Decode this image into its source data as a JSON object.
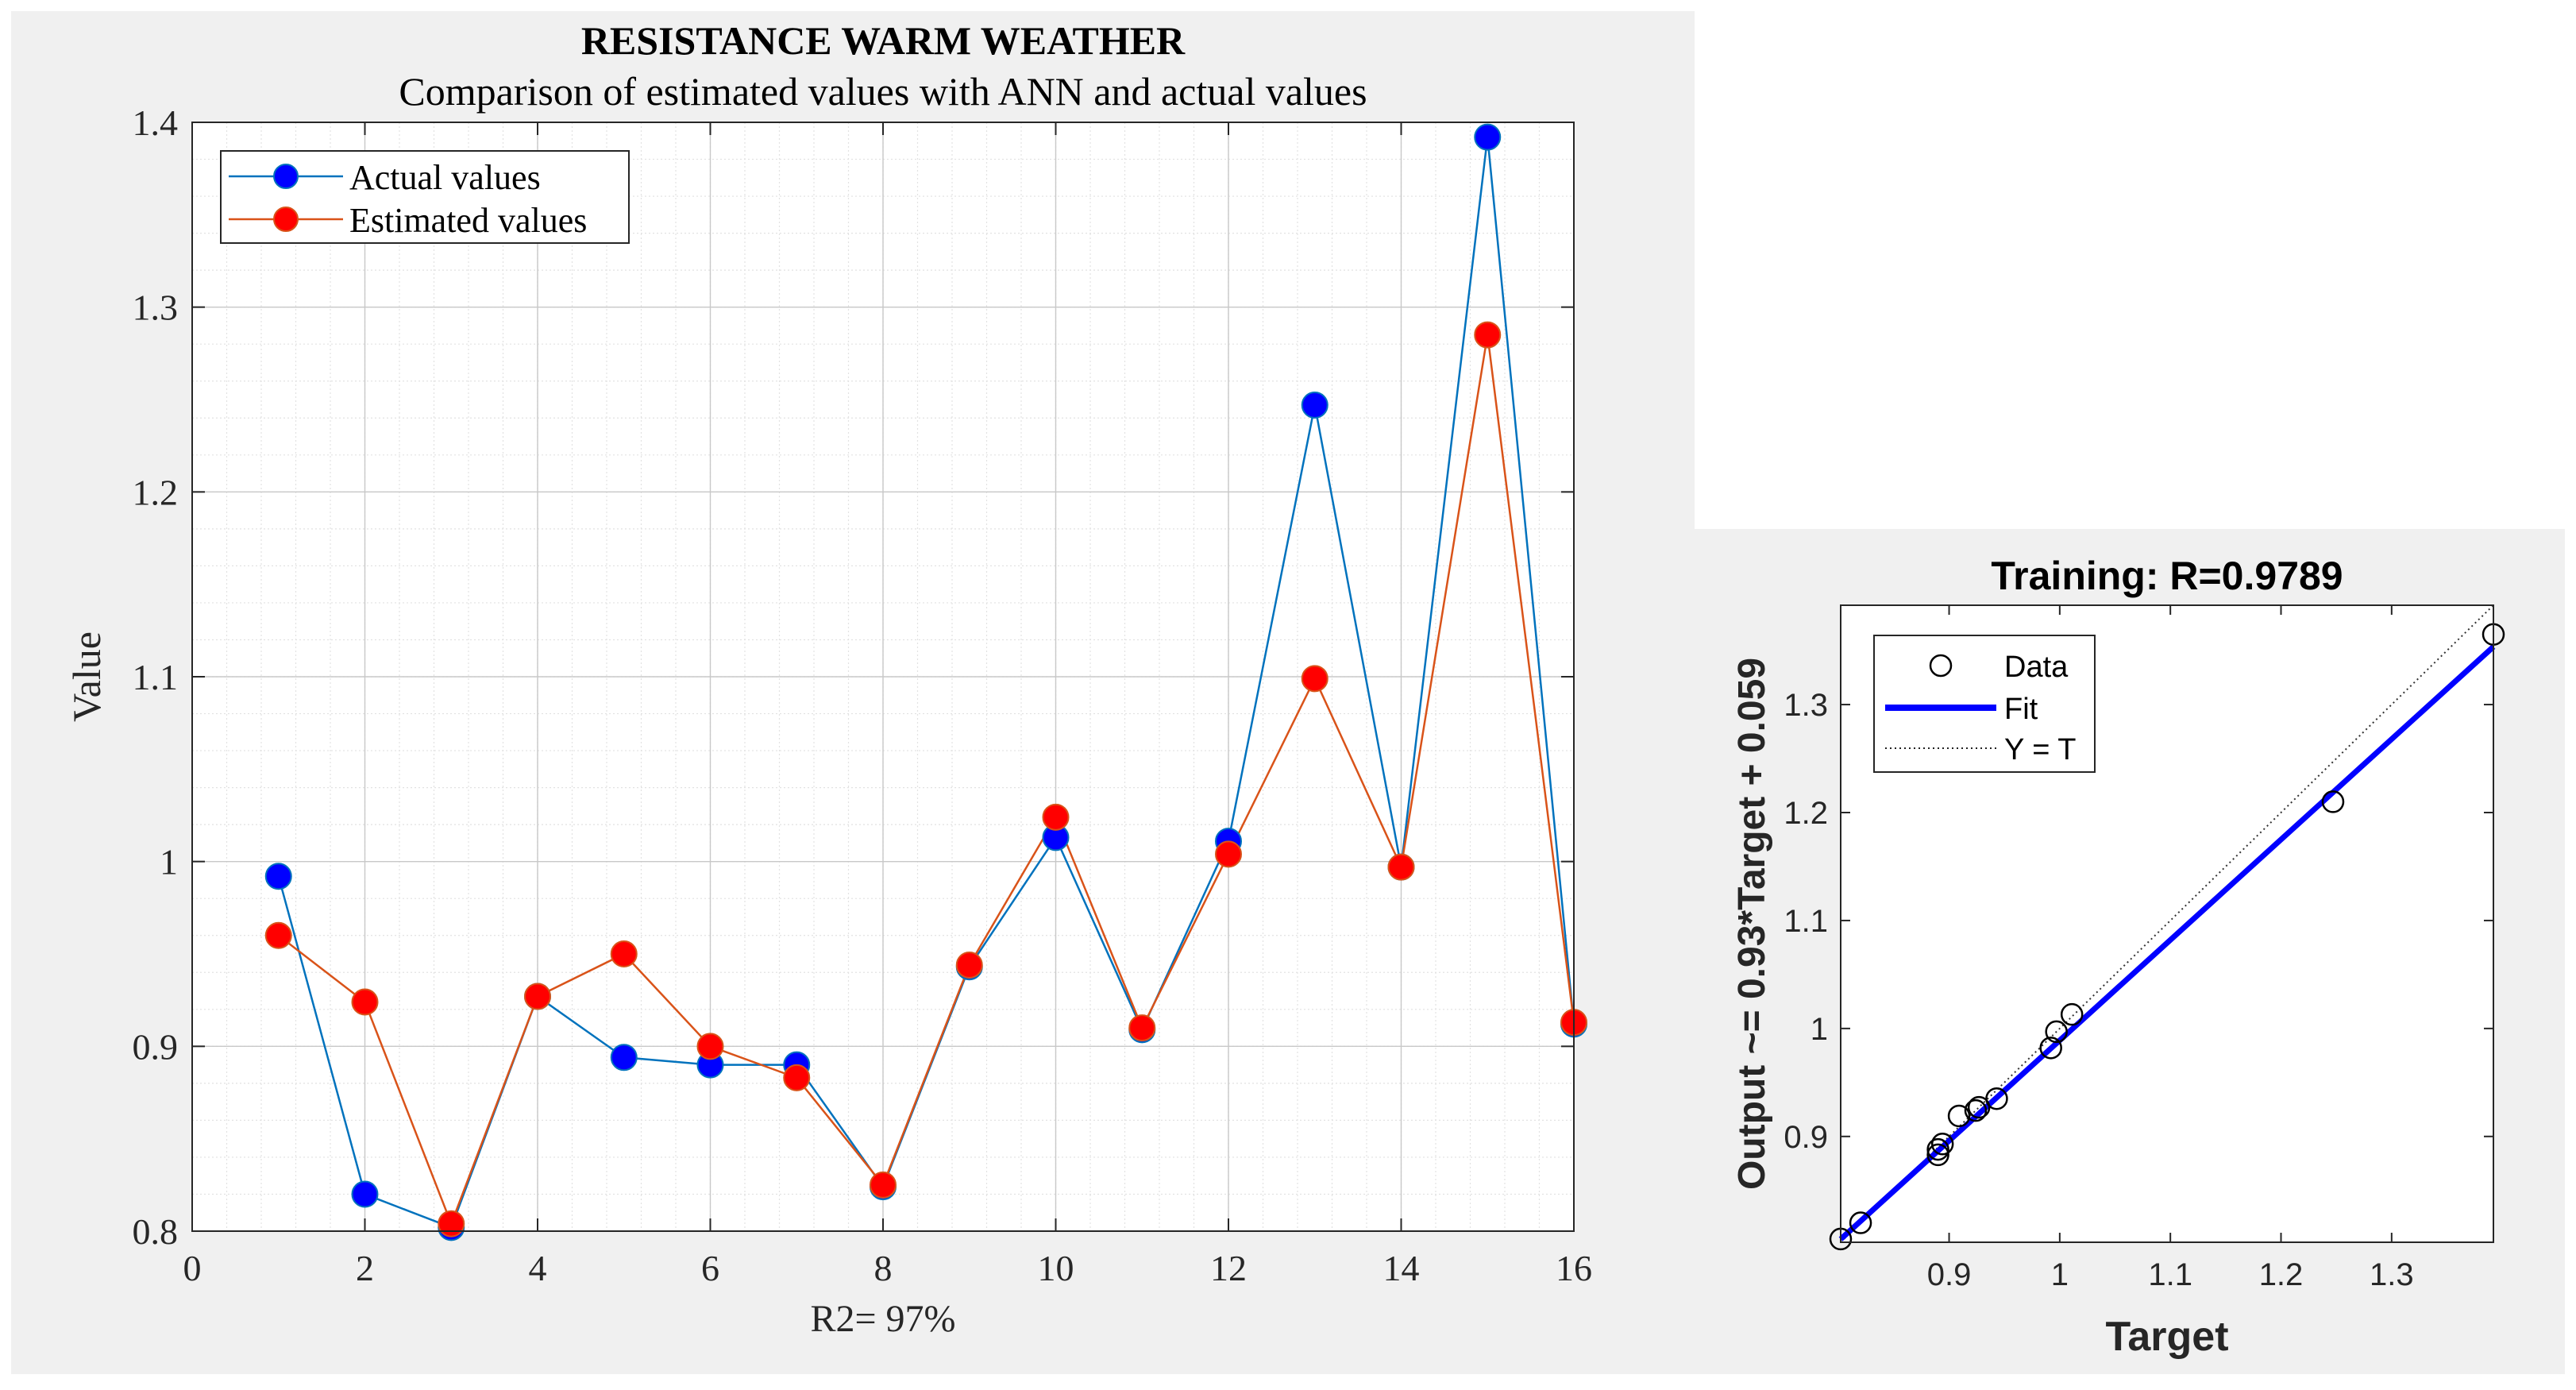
{
  "chart_data": [
    {
      "type": "line",
      "title": "RESISTANCE WARM WEATHER",
      "subtitle": "Comparison of estimated values with ANN and actual values",
      "xlabel": "R2= 97%",
      "ylabel": "Value",
      "xlim": [
        0,
        16
      ],
      "ylim": [
        0.8,
        1.4
      ],
      "xticks": [
        0,
        2,
        4,
        6,
        8,
        10,
        12,
        14,
        16
      ],
      "xtick_labels": [
        "0",
        "2",
        "4",
        "6",
        "8",
        "10",
        "12",
        "14",
        "16"
      ],
      "yticks": [
        0.8,
        0.9,
        1.0,
        1.1,
        1.2,
        1.3,
        1.4
      ],
      "ytick_labels": [
        "0.8",
        "0.9",
        "1",
        "1.1",
        "1.2",
        "1.3",
        "1.4"
      ],
      "grid": true,
      "minor_grid": true,
      "legend_position": "top-left",
      "x": [
        1,
        2,
        3,
        4,
        5,
        6,
        7,
        8,
        9,
        10,
        11,
        12,
        13,
        14,
        15,
        16
      ],
      "series": [
        {
          "name": "Actual values",
          "line_color": "#0072BD",
          "marker_color": "#0000FF",
          "values": [
            0.992,
            0.82,
            0.802,
            0.927,
            0.894,
            0.89,
            0.89,
            0.824,
            0.943,
            1.013,
            0.909,
            1.011,
            1.247,
            0.997,
            1.392,
            0.912
          ]
        },
        {
          "name": "Estimated values",
          "line_color": "#D95319",
          "marker_color": "#FF0000",
          "values": [
            0.96,
            0.924,
            0.804,
            0.927,
            0.95,
            0.9,
            0.883,
            0.825,
            0.944,
            1.024,
            0.91,
            1.004,
            1.099,
            0.997,
            1.285,
            0.913
          ]
        }
      ]
    },
    {
      "type": "scatter",
      "title": "Training: R=0.9789",
      "xlabel": "Target",
      "ylabel": "Output ~= 0.93*Target + 0.059",
      "xlim": [
        0.802,
        1.392
      ],
      "ylim": [
        0.802,
        1.392
      ],
      "xticks": [
        0.9,
        1.0,
        1.1,
        1.2,
        1.3
      ],
      "xtick_labels": [
        "0.9",
        "1",
        "1.1",
        "1.2",
        "1.3"
      ],
      "yticks": [
        0.9,
        1.0,
        1.1,
        1.2,
        1.3
      ],
      "ytick_labels": [
        "0.9",
        "1",
        "1.1",
        "1.2",
        "1.3"
      ],
      "grid": false,
      "legend_position": "top-left",
      "legend": [
        "Data",
        "Fit",
        "Y = T"
      ],
      "fit": {
        "slope": 0.93,
        "intercept": 0.059,
        "color": "#0000FF"
      },
      "points": [
        [
          0.802,
          0.805
        ],
        [
          0.82,
          0.82
        ],
        [
          0.89,
          0.883
        ],
        [
          0.89,
          0.888
        ],
        [
          0.894,
          0.893
        ],
        [
          0.909,
          0.919
        ],
        [
          0.924,
          0.924
        ],
        [
          0.927,
          0.927
        ],
        [
          0.943,
          0.935
        ],
        [
          0.992,
          0.982
        ],
        [
          0.997,
          0.997
        ],
        [
          1.011,
          1.013
        ],
        [
          1.247,
          1.21
        ],
        [
          1.392,
          1.365
        ]
      ]
    }
  ]
}
